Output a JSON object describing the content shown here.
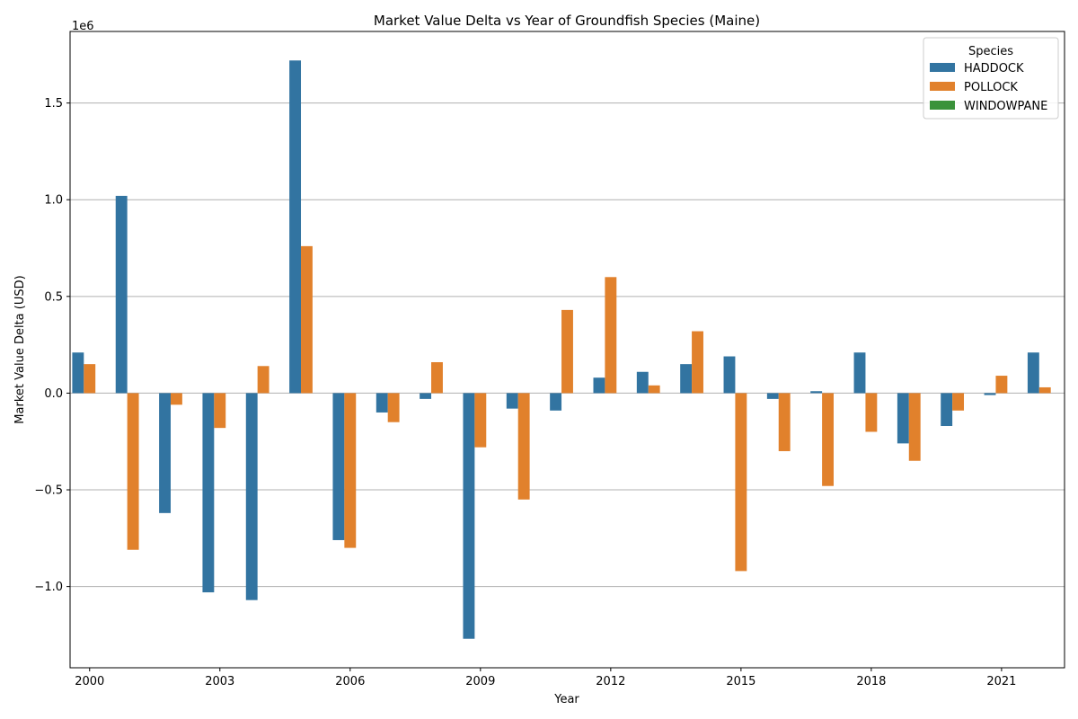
{
  "chart_data": {
    "type": "bar",
    "title": "Market Value Delta vs Year of Groundfish Species (Maine)",
    "xlabel": "Year",
    "ylabel": "Market Value Delta (USD)",
    "y_offset_label": "1e6",
    "ylim": [
      -1.42,
      1.87
    ],
    "y_ticks": [
      -1.0,
      -0.5,
      0.0,
      0.5,
      1.0,
      1.5
    ],
    "y_tick_labels": [
      "−1.0",
      "−0.5",
      "0.0",
      "0.5",
      "1.0",
      "1.5"
    ],
    "grid": "y",
    "categories": [
      "2000",
      "2001",
      "2002",
      "2003",
      "2004",
      "2005",
      "2006",
      "2007",
      "2008",
      "2009",
      "2010",
      "2011",
      "2012",
      "2013",
      "2014",
      "2015",
      "2016",
      "2017",
      "2018",
      "2019",
      "2020",
      "2021",
      "2022"
    ],
    "x_tick_labels": [
      "2000",
      "",
      "",
      "2003",
      "",
      "",
      "2006",
      "",
      "",
      "2009",
      "",
      "",
      "2012",
      "",
      "",
      "2015",
      "",
      "",
      "2018",
      "",
      "",
      "2021",
      ""
    ],
    "legend": {
      "title": "Species",
      "placement": "top-right"
    },
    "series": [
      {
        "name": "HADDOCK",
        "color": "#3274a1",
        "values": [
          0.21,
          1.02,
          -0.62,
          -1.03,
          -1.07,
          1.72,
          -0.76,
          -0.1,
          -0.03,
          -1.27,
          -0.08,
          -0.09,
          0.08,
          0.11,
          0.15,
          0.19,
          -0.03,
          0.01,
          0.21,
          -0.26,
          -0.17,
          -0.01,
          0.21
        ]
      },
      {
        "name": "POLLOCK",
        "color": "#e1812c",
        "values": [
          0.15,
          -0.81,
          -0.06,
          -0.18,
          0.14,
          0.76,
          -0.8,
          -0.15,
          0.16,
          -0.28,
          -0.55,
          0.43,
          0.6,
          0.04,
          0.32,
          -0.92,
          -0.3,
          -0.48,
          -0.2,
          -0.35,
          -0.09,
          0.09,
          0.03
        ]
      },
      {
        "name": "WINDOWPANE",
        "color": "#3a923a",
        "values": [
          0,
          0,
          0,
          0,
          0,
          0,
          0,
          0,
          0,
          0,
          0,
          0,
          0,
          0,
          0,
          0,
          0,
          0,
          0,
          0,
          0,
          0,
          0
        ]
      }
    ]
  }
}
